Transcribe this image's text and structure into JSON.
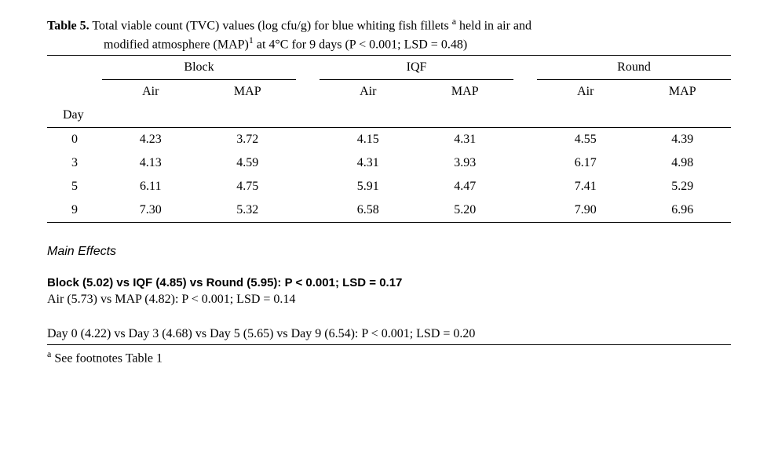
{
  "caption": {
    "label": "Table 5.",
    "line1": " Total viable count (TVC) values (log cfu/g) for blue whiting fish fillets ",
    "sup_a": "a",
    "line1b": " held in air and",
    "line2": "modified atmosphere (MAP)",
    "sup_1": "1",
    "line2b": " at 4°C for 9 days (P < 0.001; LSD = 0.48)"
  },
  "headers": {
    "groups": [
      "Block",
      "IQF",
      "Round"
    ],
    "sub": [
      "Air",
      "MAP"
    ],
    "day": "Day"
  },
  "rows": [
    {
      "day": "0",
      "cells": [
        "4.23",
        "3.72",
        "4.15",
        "4.31",
        "4.55",
        "4.39"
      ]
    },
    {
      "day": "3",
      "cells": [
        "4.13",
        "4.59",
        "4.31",
        "3.93",
        "6.17",
        "4.98"
      ]
    },
    {
      "day": "5",
      "cells": [
        "6.11",
        "4.75",
        "5.91",
        "4.47",
        "7.41",
        "5.29"
      ]
    },
    {
      "day": "9",
      "cells": [
        "7.30",
        "5.32",
        "6.58",
        "5.20",
        "7.90",
        "6.96"
      ]
    }
  ],
  "main_effects": {
    "title": "Main Effects",
    "line_bold": "Block (5.02) vs IQF (4.85) vs Round (5.95): P < 0.001; LSD = 0.17",
    "line2": "Air (5.73) vs MAP (4.82): P < 0.001; LSD = 0.14",
    "line3": "Day 0 (4.22) vs Day 3 (4.68) vs Day 5 (5.65) vs Day 9 (6.54): P < 0.001; LSD = 0.20"
  },
  "footnote": {
    "sup": "a",
    "text": " See footnotes Table 1"
  }
}
